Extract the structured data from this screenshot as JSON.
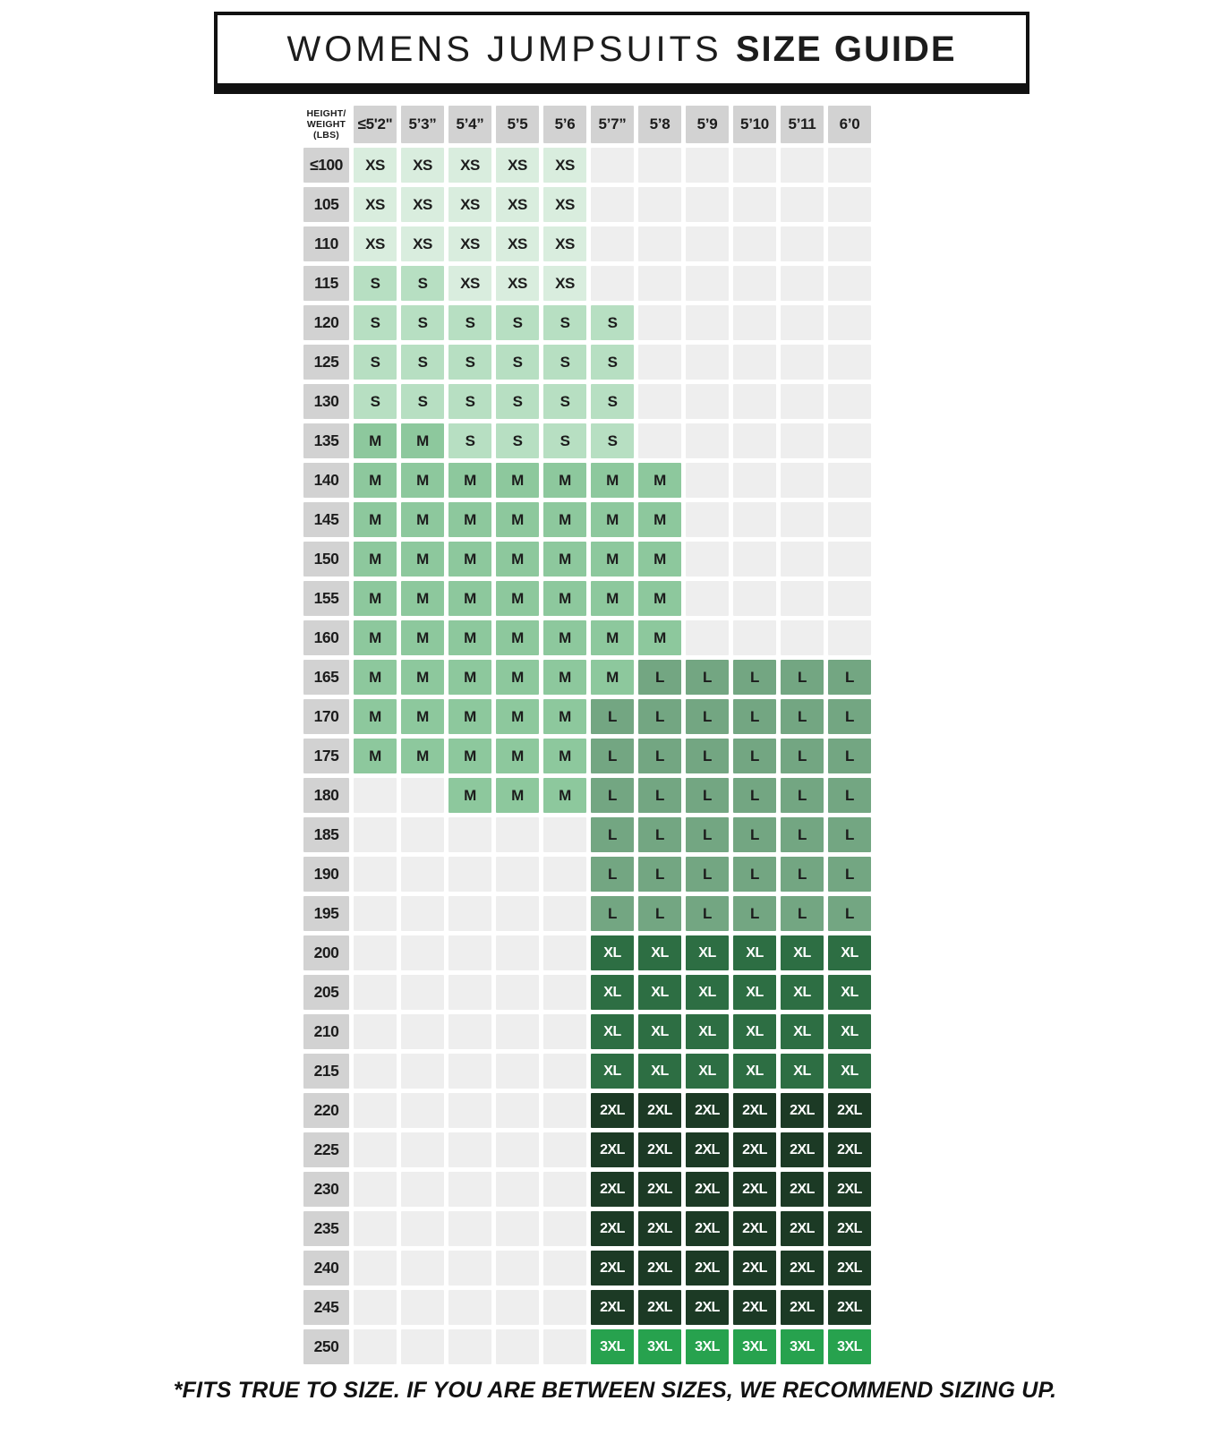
{
  "title": {
    "prefix": "WOMENS JUMPSUITS",
    "emphasis": "SIZE GUIDE"
  },
  "table": {
    "corner_label": "HEIGHT/ WEIGHT (LBS)",
    "columns": [
      "≤5'2\"",
      "5’3”",
      "5’4”",
      "5’5",
      "5’6",
      "5’7”",
      "5’8",
      "5’9",
      "5’10",
      "5’11",
      "6’0"
    ],
    "rows": [
      {
        "weight": "≤100",
        "cells": [
          "XS",
          "XS",
          "XS",
          "XS",
          "XS",
          "",
          "",
          "",
          "",
          "",
          ""
        ]
      },
      {
        "weight": "105",
        "cells": [
          "XS",
          "XS",
          "XS",
          "XS",
          "XS",
          "",
          "",
          "",
          "",
          "",
          ""
        ]
      },
      {
        "weight": "110",
        "cells": [
          "XS",
          "XS",
          "XS",
          "XS",
          "XS",
          "",
          "",
          "",
          "",
          "",
          ""
        ]
      },
      {
        "weight": "115",
        "cells": [
          "S",
          "S",
          "XS",
          "XS",
          "XS",
          "",
          "",
          "",
          "",
          "",
          ""
        ]
      },
      {
        "weight": "120",
        "cells": [
          "S",
          "S",
          "S",
          "S",
          "S",
          "S",
          "",
          "",
          "",
          "",
          ""
        ]
      },
      {
        "weight": "125",
        "cells": [
          "S",
          "S",
          "S",
          "S",
          "S",
          "S",
          "",
          "",
          "",
          "",
          ""
        ]
      },
      {
        "weight": "130",
        "cells": [
          "S",
          "S",
          "S",
          "S",
          "S",
          "S",
          "",
          "",
          "",
          "",
          ""
        ]
      },
      {
        "weight": "135",
        "cells": [
          "M",
          "M",
          "S",
          "S",
          "S",
          "S",
          "",
          "",
          "",
          "",
          ""
        ]
      },
      {
        "weight": "140",
        "cells": [
          "M",
          "M",
          "M",
          "M",
          "M",
          "M",
          "M",
          "",
          "",
          "",
          ""
        ]
      },
      {
        "weight": "145",
        "cells": [
          "M",
          "M",
          "M",
          "M",
          "M",
          "M",
          "M",
          "",
          "",
          "",
          ""
        ]
      },
      {
        "weight": "150",
        "cells": [
          "M",
          "M",
          "M",
          "M",
          "M",
          "M",
          "M",
          "",
          "",
          "",
          ""
        ]
      },
      {
        "weight": "155",
        "cells": [
          "M",
          "M",
          "M",
          "M",
          "M",
          "M",
          "M",
          "",
          "",
          "",
          ""
        ]
      },
      {
        "weight": "160",
        "cells": [
          "M",
          "M",
          "M",
          "M",
          "M",
          "M",
          "M",
          "",
          "",
          "",
          ""
        ]
      },
      {
        "weight": "165",
        "cells": [
          "M",
          "M",
          "M",
          "M",
          "M",
          "M",
          "L",
          "L",
          "L",
          "L",
          "L"
        ]
      },
      {
        "weight": "170",
        "cells": [
          "M",
          "M",
          "M",
          "M",
          "M",
          "L",
          "L",
          "L",
          "L",
          "L",
          "L"
        ]
      },
      {
        "weight": "175",
        "cells": [
          "M",
          "M",
          "M",
          "M",
          "M",
          "L",
          "L",
          "L",
          "L",
          "L",
          "L"
        ]
      },
      {
        "weight": "180",
        "cells": [
          "",
          "",
          "M",
          "M",
          "M",
          "L",
          "L",
          "L",
          "L",
          "L",
          "L"
        ]
      },
      {
        "weight": "185",
        "cells": [
          "",
          "",
          "",
          "",
          "",
          "L",
          "L",
          "L",
          "L",
          "L",
          "L"
        ]
      },
      {
        "weight": "190",
        "cells": [
          "",
          "",
          "",
          "",
          "",
          "L",
          "L",
          "L",
          "L",
          "L",
          "L"
        ]
      },
      {
        "weight": "195",
        "cells": [
          "",
          "",
          "",
          "",
          "",
          "L",
          "L",
          "L",
          "L",
          "L",
          "L"
        ]
      },
      {
        "weight": "200",
        "cells": [
          "",
          "",
          "",
          "",
          "",
          "XL",
          "XL",
          "XL",
          "XL",
          "XL",
          "XL"
        ]
      },
      {
        "weight": "205",
        "cells": [
          "",
          "",
          "",
          "",
          "",
          "XL",
          "XL",
          "XL",
          "XL",
          "XL",
          "XL"
        ]
      },
      {
        "weight": "210",
        "cells": [
          "",
          "",
          "",
          "",
          "",
          "XL",
          "XL",
          "XL",
          "XL",
          "XL",
          "XL"
        ]
      },
      {
        "weight": "215",
        "cells": [
          "",
          "",
          "",
          "",
          "",
          "XL",
          "XL",
          "XL",
          "XL",
          "XL",
          "XL"
        ]
      },
      {
        "weight": "220",
        "cells": [
          "",
          "",
          "",
          "",
          "",
          "2XL",
          "2XL",
          "2XL",
          "2XL",
          "2XL",
          "2XL"
        ]
      },
      {
        "weight": "225",
        "cells": [
          "",
          "",
          "",
          "",
          "",
          "2XL",
          "2XL",
          "2XL",
          "2XL",
          "2XL",
          "2XL"
        ]
      },
      {
        "weight": "230",
        "cells": [
          "",
          "",
          "",
          "",
          "",
          "2XL",
          "2XL",
          "2XL",
          "2XL",
          "2XL",
          "2XL"
        ]
      },
      {
        "weight": "235",
        "cells": [
          "",
          "",
          "",
          "",
          "",
          "2XL",
          "2XL",
          "2XL",
          "2XL",
          "2XL",
          "2XL"
        ]
      },
      {
        "weight": "240",
        "cells": [
          "",
          "",
          "",
          "",
          "",
          "2XL",
          "2XL",
          "2XL",
          "2XL",
          "2XL",
          "2XL"
        ]
      },
      {
        "weight": "245",
        "cells": [
          "",
          "",
          "",
          "",
          "",
          "2XL",
          "2XL",
          "2XL",
          "2XL",
          "2XL",
          "2XL"
        ]
      },
      {
        "weight": "250",
        "cells": [
          "",
          "",
          "",
          "",
          "",
          "3XL",
          "3XL",
          "3XL",
          "3XL",
          "3XL",
          "3XL"
        ]
      }
    ]
  },
  "footnote": "*FITS TRUE TO SIZE. IF YOU ARE BETWEEN SIZES, WE RECOMMEND SIZING UP.",
  "colors": {
    "border_black": "#111111",
    "header_gray": "#d2d2d2",
    "empty_cell": "#eeeeee",
    "dark_text": "#1c1c1c",
    "light_text": "#ffffff"
  },
  "size_styles": {
    "XS": {
      "bg": "#d9edde",
      "text": "#1c1c1c"
    },
    "S": {
      "bg": "#b7dfc2",
      "text": "#1c1c1c"
    },
    "M": {
      "bg": "#8dc89d",
      "text": "#1c1c1c"
    },
    "L": {
      "bg": "#73a682",
      "text": "#1c1c1c"
    },
    "XL": {
      "bg": "#2d6e43",
      "text": "#ffffff"
    },
    "2XL": {
      "bg": "#1c3a25",
      "text": "#ffffff"
    },
    "3XL": {
      "bg": "#27a24e",
      "text": "#ffffff"
    }
  }
}
